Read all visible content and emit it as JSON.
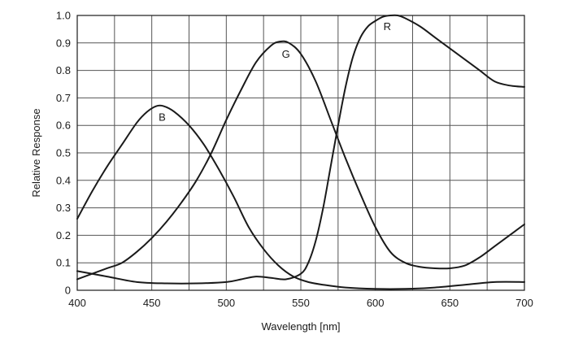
{
  "chart_data": {
    "type": "line",
    "title": "",
    "xlabel": "Wavelength [nm]",
    "ylabel": "Relative Response",
    "xlim": [
      400,
      700
    ],
    "ylim": [
      0,
      1.0
    ],
    "grid": true,
    "x_ticks": [
      400,
      450,
      500,
      550,
      600,
      650,
      700
    ],
    "x_tick_labels": [
      "400",
      "450",
      "500",
      "550",
      "600",
      "650",
      "700"
    ],
    "y_ticks": [
      0,
      0.1,
      0.2,
      0.3,
      0.4,
      0.5,
      0.6,
      0.7,
      0.8,
      0.9,
      1.0
    ],
    "y_tick_labels": [
      "0",
      "0.1",
      "0.2",
      "0.3",
      "0.4",
      "0.5",
      "0.6",
      "0.7",
      "0.8",
      "0.9",
      "1.0"
    ],
    "x_grid_step": 25,
    "series": [
      {
        "name": "B",
        "label_at": [
          457,
          0.63
        ],
        "x": [
          400,
          410,
          420,
          430,
          440,
          447,
          453,
          458,
          465,
          475,
          485,
          495,
          505,
          515,
          525,
          535,
          545,
          555,
          565,
          580,
          600,
          620,
          640,
          660,
          680,
          700
        ],
        "y": [
          0.26,
          0.36,
          0.45,
          0.53,
          0.61,
          0.65,
          0.67,
          0.67,
          0.65,
          0.6,
          0.53,
          0.44,
          0.34,
          0.23,
          0.15,
          0.09,
          0.05,
          0.03,
          0.02,
          0.01,
          0.005,
          0.005,
          0.01,
          0.02,
          0.03,
          0.03
        ]
      },
      {
        "name": "G",
        "label_at": [
          540,
          0.86
        ],
        "x": [
          400,
          410,
          420,
          430,
          440,
          450,
          460,
          470,
          480,
          490,
          500,
          510,
          520,
          530,
          536,
          542,
          550,
          560,
          570,
          580,
          590,
          600,
          610,
          620,
          630,
          640,
          650,
          660,
          670,
          680,
          690,
          700
        ],
        "y": [
          0.04,
          0.06,
          0.08,
          0.1,
          0.14,
          0.19,
          0.25,
          0.32,
          0.4,
          0.5,
          0.62,
          0.73,
          0.83,
          0.89,
          0.905,
          0.9,
          0.86,
          0.76,
          0.62,
          0.48,
          0.35,
          0.23,
          0.14,
          0.1,
          0.085,
          0.08,
          0.08,
          0.09,
          0.12,
          0.16,
          0.2,
          0.24
        ]
      },
      {
        "name": "R",
        "label_at": [
          608,
          0.96
        ],
        "x": [
          400,
          420,
          440,
          460,
          480,
          500,
          510,
          520,
          530,
          540,
          550,
          555,
          560,
          565,
          570,
          575,
          580,
          585,
          590,
          595,
          600,
          605,
          610,
          615,
          620,
          630,
          640,
          650,
          660,
          670,
          680,
          690,
          700
        ],
        "y": [
          0.07,
          0.05,
          0.03,
          0.025,
          0.025,
          0.03,
          0.04,
          0.05,
          0.045,
          0.04,
          0.06,
          0.1,
          0.18,
          0.3,
          0.45,
          0.6,
          0.74,
          0.85,
          0.92,
          0.96,
          0.98,
          0.995,
          1.0,
          1.0,
          0.99,
          0.96,
          0.92,
          0.88,
          0.84,
          0.8,
          0.76,
          0.745,
          0.74
        ]
      }
    ]
  }
}
